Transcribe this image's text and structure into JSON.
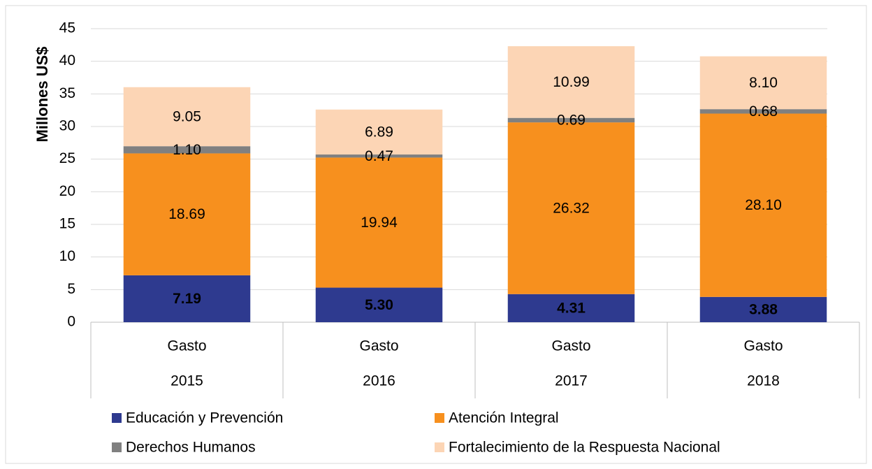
{
  "chart_data": {
    "type": "stacked_bar",
    "y_label": "Millones US$",
    "categories": [
      [
        "Gasto",
        "2015"
      ],
      [
        "Gasto",
        "2016"
      ],
      [
        "Gasto",
        "2017"
      ],
      [
        "Gasto",
        "2018"
      ]
    ],
    "series": [
      {
        "name": "Educación y Prevención",
        "color": "#2e3a8f",
        "values": [
          7.19,
          5.3,
          4.31,
          3.88
        ],
        "value_labels": [
          "7.19",
          "5.30",
          "4.31",
          "3.88"
        ]
      },
      {
        "name": "Atención Integral",
        "color": "#f7901e",
        "values": [
          18.69,
          19.94,
          26.32,
          28.1
        ],
        "value_labels": [
          "18.69",
          "19.94",
          "26.32",
          "28.10"
        ]
      },
      {
        "name": "Derechos Humanos",
        "color": "#808080",
        "values": [
          1.1,
          0.47,
          0.69,
          0.68
        ],
        "value_labels": [
          "1.10",
          "0.47",
          "0.69",
          "0.68"
        ]
      },
      {
        "name": "Fortalecimiento de la Respuesta Nacional",
        "color": "#fcd5b5",
        "values": [
          9.05,
          6.89,
          10.99,
          8.1
        ],
        "value_labels": [
          "9.05",
          "6.89",
          "10.99",
          "8.10"
        ]
      }
    ],
    "ylim": [
      0,
      45
    ],
    "yticks": [
      0,
      5,
      10,
      15,
      20,
      25,
      30,
      35,
      40,
      45
    ],
    "grid": true
  }
}
